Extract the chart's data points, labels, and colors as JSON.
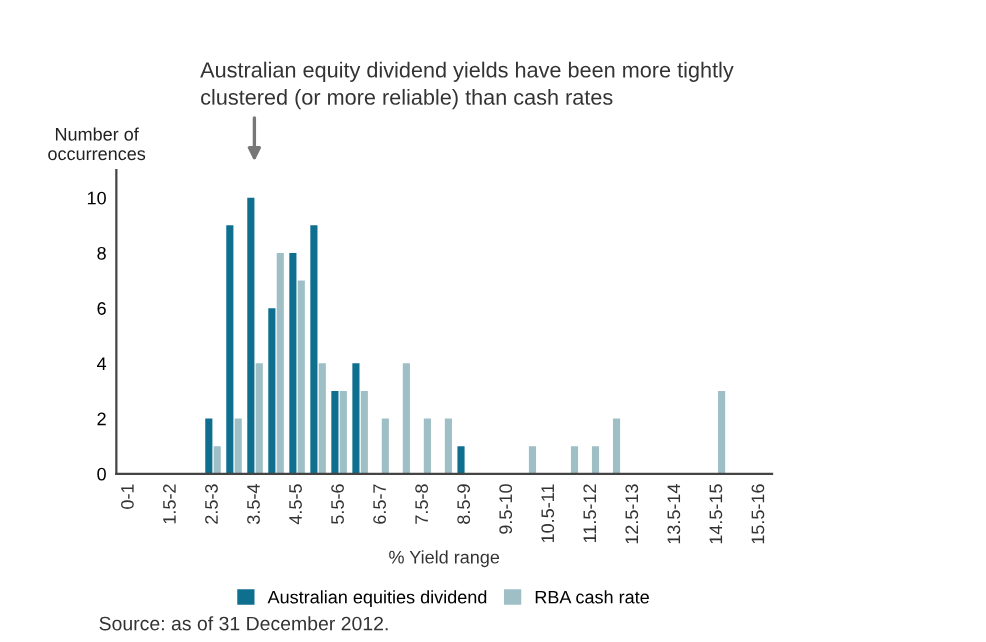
{
  "chart_data": {
    "type": "bar",
    "ylabel": "Number of occurrences",
    "xlabel": "% Yield range",
    "categories": [
      "0-1",
      null,
      "1.5-2",
      null,
      "2.5-3",
      null,
      "3.5-4",
      null,
      "4.5-5",
      null,
      "5.5-6",
      null,
      "6.5-7",
      null,
      "7.5-8",
      null,
      "8.5-9",
      null,
      "9.5-10",
      null,
      "10.5-11",
      null,
      "11.5-12",
      null,
      "12.5-13",
      null,
      "13.5-14",
      null,
      "14.5-15",
      null,
      "15.5-16"
    ],
    "series": [
      {
        "name": "Australian equities dividend",
        "color": "#0e6f8f",
        "values": [
          0,
          0,
          0,
          0,
          2,
          9,
          10,
          6,
          8,
          9,
          3,
          4,
          0,
          0,
          0,
          0,
          1,
          0,
          0,
          0,
          0,
          0,
          0,
          0,
          0,
          0,
          0,
          0,
          0,
          0,
          0
        ]
      },
      {
        "name": "RBA cash rate",
        "color": "#9fbfc6",
        "values": [
          0,
          0,
          0,
          0,
          1,
          2,
          4,
          8,
          7,
          4,
          3,
          3,
          2,
          4,
          2,
          2,
          0,
          0,
          0,
          1,
          0,
          1,
          1,
          2,
          0,
          0,
          0,
          0,
          3,
          0,
          0
        ]
      }
    ],
    "ylim": [
      0,
      11
    ],
    "yticks": [
      0,
      2,
      4,
      6,
      8,
      10
    ],
    "grid": false,
    "legend": "bottom",
    "annotations": [
      "Australian equity dividend yields have been more tightly clustered (or more reliable) than cash rates",
      "Source: as of 31 December 2012."
    ]
  }
}
